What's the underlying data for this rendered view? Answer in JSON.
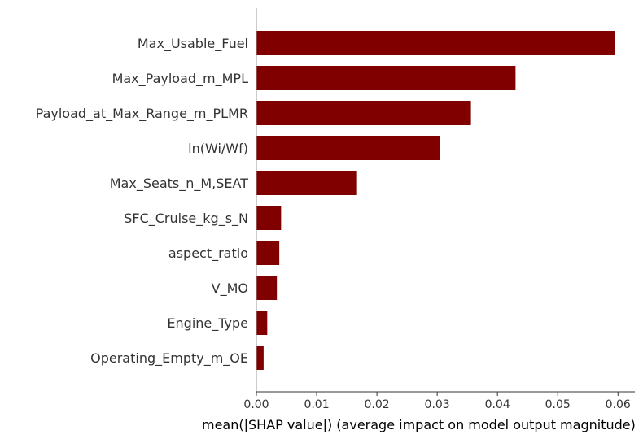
{
  "chart_data": {
    "type": "bar",
    "orientation": "horizontal",
    "categories": [
      "Max_Usable_Fuel",
      "Max_Payload_m_MPL",
      "Payload_at_Max_Range_m_PLMR",
      "ln(Wi/Wf)",
      "Max_Seats_n_M,SEAT",
      "SFC_Cruise_kg_s_N",
      "aspect_ratio",
      "V_MO",
      "Engine_Type",
      "Operating_Empty_m_OE"
    ],
    "values": [
      0.0595,
      0.043,
      0.0356,
      0.0305,
      0.0167,
      0.0041,
      0.0038,
      0.0034,
      0.0018,
      0.0012
    ],
    "xlim": [
      0,
      0.0628
    ],
    "xticks": [
      0.0,
      0.01,
      0.02,
      0.03,
      0.04,
      0.05,
      0.06
    ],
    "xtick_labels": [
      "0.00",
      "0.01",
      "0.02",
      "0.03",
      "0.04",
      "0.05",
      "0.06"
    ],
    "xlabel": "mean(|SHAP value|) (average impact on model output magnitude)",
    "ylabel": "",
    "title": "",
    "bar_color": "#800000",
    "grid": false,
    "legend": false
  }
}
